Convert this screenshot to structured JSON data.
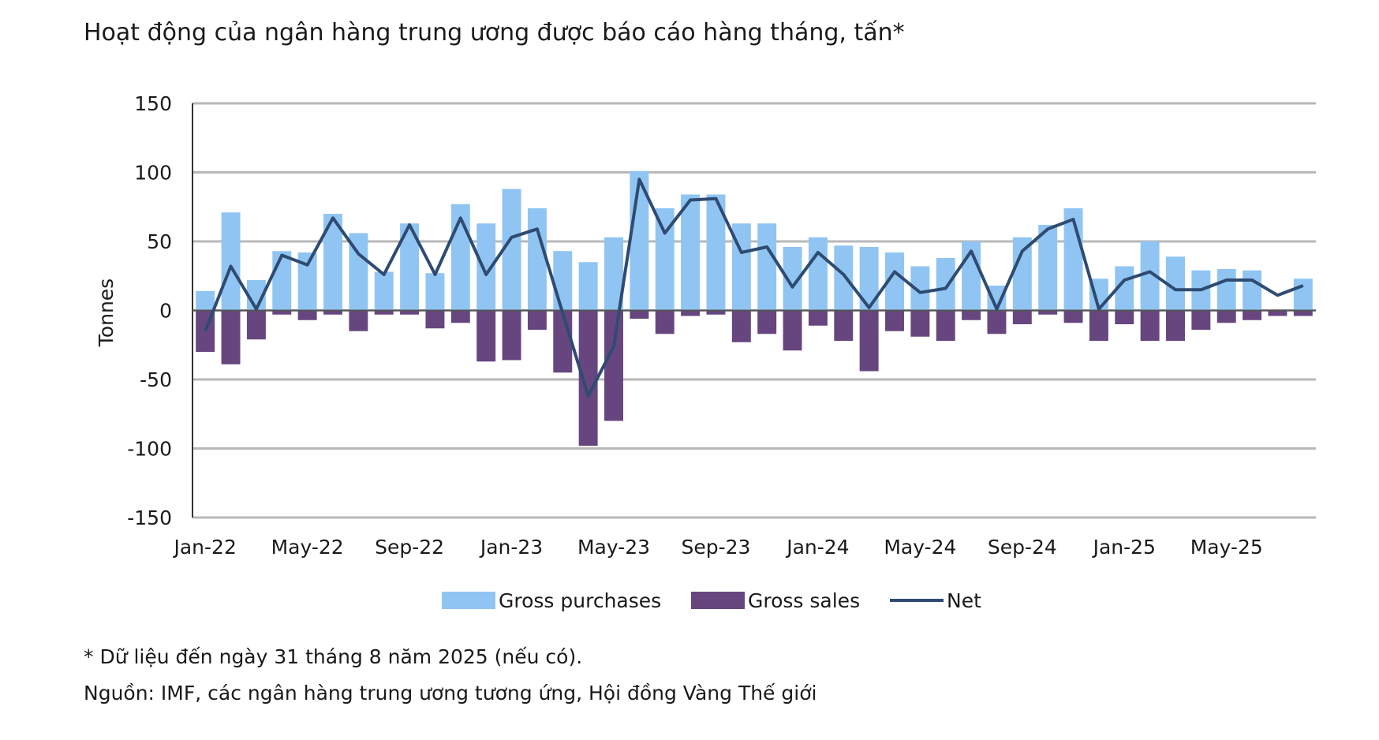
{
  "title": "Hoạt động của ngân hàng trung ương được báo cáo hàng tháng, tấn*",
  "footnote": "* Dữ liệu đến ngày 31 tháng 8 năm 2025 (nếu có).",
  "source": "Nguồn: IMF, các ngân hàng trung ương tương ứng, Hội đồng Vàng Thế giới",
  "colors": {
    "purchases": "#90c5f3",
    "sales": "#674680",
    "net": "#2f4b71",
    "grid": "#b8b8b8"
  },
  "chart_data": {
    "type": "bar",
    "ylabel": "Tonnes",
    "xlabel": "",
    "ylim": [
      -150,
      150
    ],
    "yticks": [
      150,
      100,
      50,
      0,
      -50,
      -100,
      -150
    ],
    "categories": [
      "Jan-22",
      "Feb-22",
      "Mar-22",
      "Apr-22",
      "May-22",
      "Jun-22",
      "Jul-22",
      "Aug-22",
      "Sep-22",
      "Oct-22",
      "Nov-22",
      "Dec-22",
      "Jan-23",
      "Feb-23",
      "Mar-23",
      "Apr-23",
      "May-23",
      "Jun-23",
      "Jul-23",
      "Aug-23",
      "Sep-23",
      "Oct-23",
      "Nov-23",
      "Dec-23",
      "Jan-24",
      "Feb-24",
      "Mar-24",
      "Apr-24",
      "May-24",
      "Jun-24",
      "Jul-24",
      "Aug-24",
      "Sep-24",
      "Oct-24",
      "Nov-24",
      "Dec-24",
      "Jan-25",
      "Feb-25",
      "Mar-25",
      "Apr-25",
      "May-25",
      "Jun-25",
      "Jul-25",
      "Aug-25"
    ],
    "xtick_labels": [
      {
        "index": 0,
        "label": "Jan-22"
      },
      {
        "index": 4,
        "label": "May-22"
      },
      {
        "index": 8,
        "label": "Sep-22"
      },
      {
        "index": 12,
        "label": "Jan-23"
      },
      {
        "index": 16,
        "label": "May-23"
      },
      {
        "index": 20,
        "label": "Sep-23"
      },
      {
        "index": 24,
        "label": "Jan-24"
      },
      {
        "index": 28,
        "label": "May-24"
      },
      {
        "index": 32,
        "label": "Sep-24"
      },
      {
        "index": 36,
        "label": "Jan-25"
      },
      {
        "index": 40,
        "label": "May-25"
      }
    ],
    "series": [
      {
        "name": "Gross purchases",
        "type": "bar",
        "values": [
          14,
          71,
          22,
          43,
          42,
          70,
          56,
          28,
          63,
          27,
          77,
          63,
          88,
          74,
          43,
          35,
          53,
          101,
          74,
          84,
          84,
          63,
          63,
          46,
          53,
          47,
          46,
          42,
          32,
          38,
          50,
          18,
          53,
          62,
          74,
          23,
          32,
          50,
          39,
          29,
          30,
          29,
          0,
          23
        ]
      },
      {
        "name": "Gross sales",
        "type": "bar",
        "values": [
          -30,
          -39,
          -21,
          -3,
          -7,
          -3,
          -15,
          -3,
          -3,
          -13,
          -9,
          -37,
          -36,
          -14,
          -45,
          -98,
          -80,
          -6,
          -17,
          -4,
          -3,
          -23,
          -17,
          -29,
          -11,
          -22,
          -44,
          -15,
          -19,
          -22,
          -7,
          -17,
          -10,
          -3,
          -9,
          -22,
          -10,
          -22,
          -22,
          -14,
          -9,
          -7,
          -4,
          -4
        ]
      },
      {
        "name": "Net",
        "type": "line",
        "values": [
          -15,
          32,
          1,
          40,
          33,
          67,
          41,
          26,
          62,
          26,
          67,
          26,
          53,
          59,
          -2,
          -62,
          -26,
          95,
          56,
          80,
          81,
          42,
          46,
          17,
          42,
          26,
          2,
          28,
          13,
          16,
          43,
          1,
          43,
          59,
          66,
          1,
          22,
          28,
          15,
          15,
          22,
          22,
          11,
          18
        ]
      }
    ],
    "legend": [
      "Gross purchases",
      "Gross sales",
      "Net"
    ],
    "legend_position": "bottom",
    "grid": true
  }
}
